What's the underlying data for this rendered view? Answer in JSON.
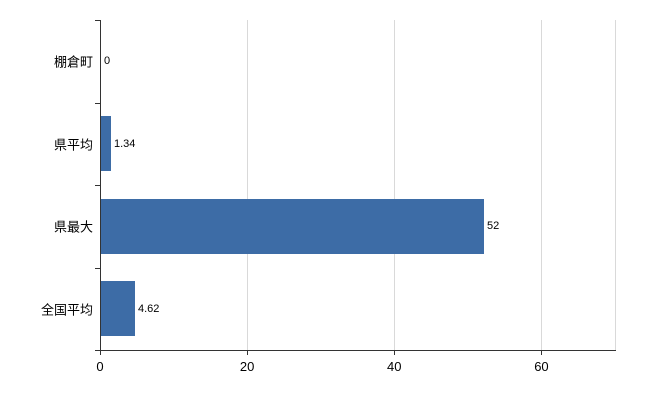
{
  "chart_data": {
    "type": "bar",
    "orientation": "horizontal",
    "title": "",
    "xlabel": "",
    "ylabel": "",
    "categories": [
      "棚倉町",
      "県平均",
      "県最大",
      "全国平均"
    ],
    "values": [
      0,
      1.34,
      52,
      4.62
    ],
    "value_labels": [
      "0",
      "1.34",
      "52",
      "4.62"
    ],
    "series_name": "",
    "x_ticks": [
      0,
      20,
      40,
      60
    ],
    "x_tick_labels": [
      "0",
      "20",
      "40",
      "60"
    ],
    "xlim": [
      0,
      70
    ],
    "grid": true,
    "legend": false,
    "colors": {
      "bar": "#3d6ca6",
      "axis": "#333333",
      "gridline": "#d9d9d9",
      "text": "#000000",
      "background": "#ffffff"
    }
  }
}
